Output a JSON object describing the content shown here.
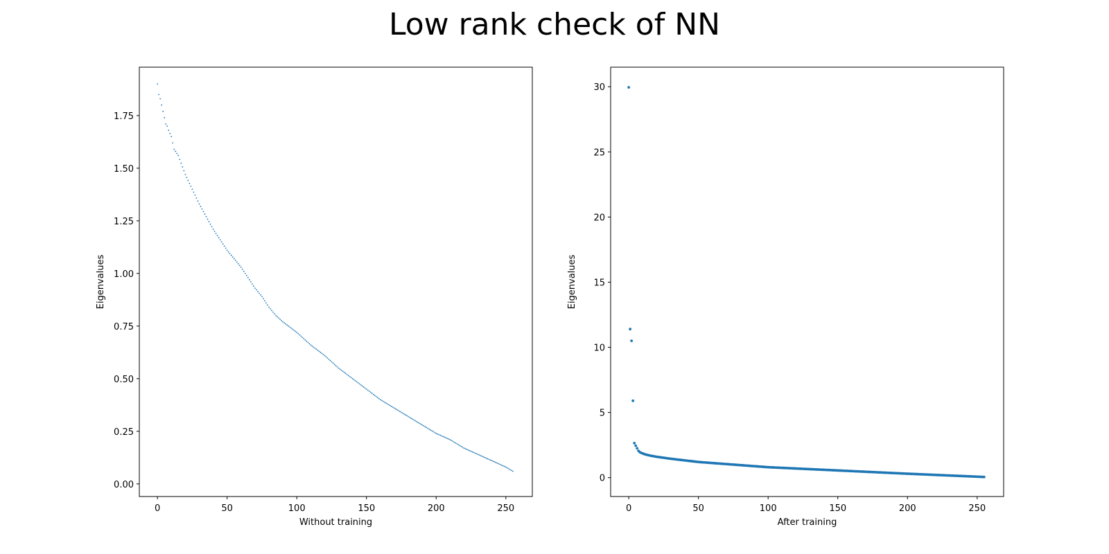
{
  "figure": {
    "title": "Low rank check of NN",
    "background": "#ffffff",
    "marker_color": "#1f77b4"
  },
  "chart_data": [
    {
      "type": "scatter",
      "title": "",
      "xlabel": "Without training",
      "ylabel": "Eigenvalues",
      "xlim": [
        -13,
        269
      ],
      "ylim": [
        -0.06,
        1.98
      ],
      "xticks": [
        0,
        50,
        100,
        150,
        200,
        250
      ],
      "yticks": [
        0.0,
        0.25,
        0.5,
        0.75,
        1.0,
        1.25,
        1.5,
        1.75
      ],
      "ytick_labels": [
        "0.00",
        "0.25",
        "0.50",
        "0.75",
        "1.00",
        "1.25",
        "1.50",
        "1.75"
      ],
      "grid": false,
      "legend": "none",
      "marker_size": "tiny",
      "x_range": [
        0,
        255
      ],
      "anchors": {
        "x": [
          0,
          1,
          2,
          3,
          4,
          5,
          6,
          7,
          8,
          10,
          12,
          15,
          20,
          25,
          30,
          35,
          40,
          45,
          50,
          55,
          60,
          65,
          70,
          75,
          80,
          85,
          90,
          100,
          110,
          120,
          130,
          140,
          150,
          160,
          170,
          180,
          190,
          200,
          210,
          220,
          230,
          240,
          250,
          255
        ],
        "y": [
          1.9,
          1.85,
          1.83,
          1.8,
          1.77,
          1.74,
          1.71,
          1.7,
          1.68,
          1.65,
          1.59,
          1.56,
          1.47,
          1.4,
          1.33,
          1.27,
          1.21,
          1.16,
          1.11,
          1.07,
          1.03,
          0.98,
          0.93,
          0.89,
          0.84,
          0.8,
          0.77,
          0.72,
          0.66,
          0.61,
          0.55,
          0.5,
          0.45,
          0.4,
          0.36,
          0.32,
          0.28,
          0.24,
          0.21,
          0.17,
          0.14,
          0.11,
          0.08,
          0.06
        ]
      }
    },
    {
      "type": "scatter",
      "title": "",
      "xlabel": "After training",
      "ylabel": "Eigenvalues",
      "xlim": [
        -13,
        269
      ],
      "ylim": [
        -1.45,
        31.5
      ],
      "xticks": [
        0,
        50,
        100,
        150,
        200,
        250
      ],
      "yticks": [
        0,
        5,
        10,
        15,
        20,
        25,
        30
      ],
      "ytick_labels": [
        "0",
        "5",
        "10",
        "15",
        "20",
        "25",
        "30"
      ],
      "grid": false,
      "legend": "none",
      "marker_size": "small",
      "x_range": [
        0,
        255
      ],
      "anchors": {
        "x": [
          0,
          1,
          2,
          3,
          4,
          5,
          6,
          7,
          8,
          10,
          12,
          15,
          20,
          30,
          50,
          75,
          100,
          150,
          200,
          255
        ],
        "y": [
          29.95,
          11.4,
          10.5,
          5.9,
          2.65,
          2.45,
          2.25,
          2.05,
          1.95,
          1.85,
          1.78,
          1.7,
          1.6,
          1.45,
          1.2,
          1.0,
          0.8,
          0.55,
          0.3,
          0.05
        ]
      }
    }
  ]
}
